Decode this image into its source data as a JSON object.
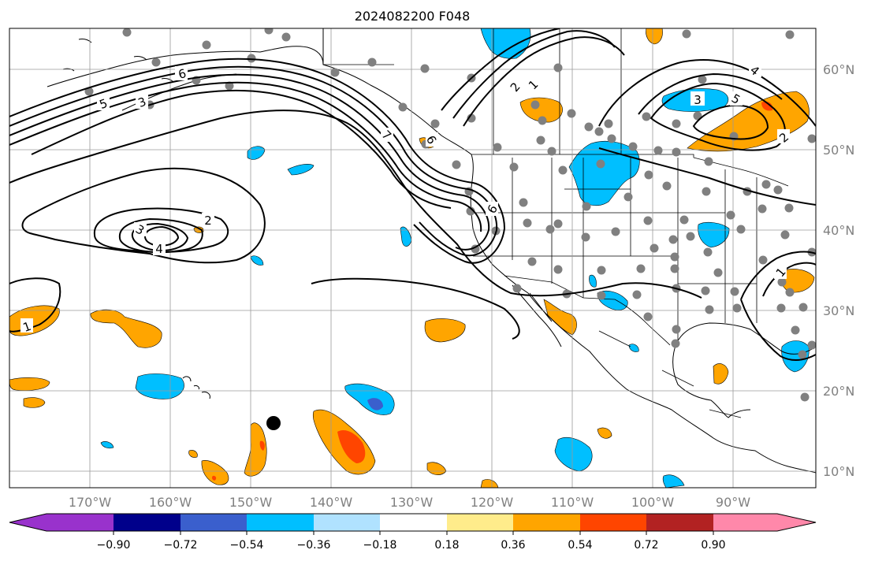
{
  "title": "2024082200 F048",
  "map": {
    "lon_labels": [
      "170°W",
      "160°W",
      "150°W",
      "140°W",
      "130°W",
      "120°W",
      "110°W",
      "100°W",
      "90°W"
    ],
    "lat_labels": [
      "60°N",
      "50°N",
      "40°N",
      "30°N",
      "20°N",
      "10°N"
    ],
    "land_color": "#ffffff",
    "ocean_color": "#ffffff",
    "grid": true,
    "contour_labels": [
      "6",
      "5",
      "3",
      "7",
      "2",
      "1",
      "3",
      "4",
      "5",
      "2",
      "1",
      "2",
      "3",
      "4",
      "6",
      "6",
      "1"
    ]
  },
  "colorbar": {
    "ticks": [
      "−0.90",
      "−0.72",
      "−0.54",
      "−0.36",
      "−0.18",
      "0.18",
      "0.36",
      "0.54",
      "0.72",
      "0.90"
    ],
    "colors": [
      "#9932cc",
      "#00008b",
      "#3a5fcd",
      "#00bfff",
      "#b0e2ff",
      "#ffffff",
      "#ffec8b",
      "#ffa500",
      "#ff4500",
      "#b22222",
      "#ff88aa"
    ]
  }
}
